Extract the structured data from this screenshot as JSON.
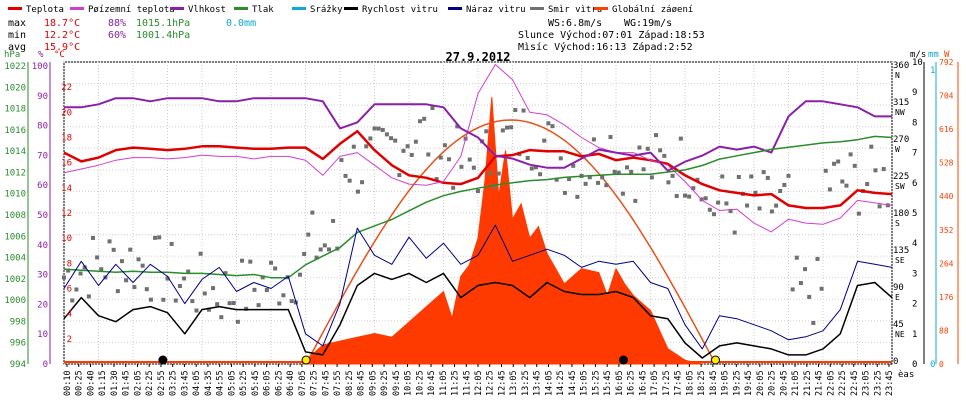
{
  "chart_data": {
    "type": "line",
    "title": "27.9.2012",
    "legend": [
      {
        "label": "Teplota",
        "color": "#e00000"
      },
      {
        "label": "Pøízemní teplota",
        "color": "#d040d0"
      },
      {
        "label": "Vlhkost",
        "color": "#8a1fa8"
      },
      {
        "label": "Tlak",
        "color": "#2a8c2a"
      },
      {
        "label": "Srážky",
        "color": "#10a8d0"
      },
      {
        "label": "Rychlost vìtru",
        "color": "#000000"
      },
      {
        "label": "Náraz vìtru",
        "color": "#00008b"
      },
      {
        "label": "Smìr vìtru",
        "color": "#707070"
      },
      {
        "label": "Globální záøení",
        "color": "#ff4000"
      }
    ],
    "stats": {
      "max": {
        "label": "max",
        "temp": "18.7°C",
        "humidity": "88%",
        "pressure": "1015.1hPa",
        "rain": "0.0mm"
      },
      "min": {
        "label": "min",
        "temp": "12.2°C",
        "humidity": "60%",
        "pressure": "1001.4hPa"
      },
      "avg": {
        "label": "avg",
        "temp": "15.9°C"
      }
    },
    "astro": {
      "ws": "WS:6.8m/s",
      "wg": "WG:19m/s",
      "sun": "Slunce Východ:07:01  Západ:18:53",
      "moon": "Mìsíc  Východ:16:13  Západ:2:52"
    },
    "axes": {
      "hpa": {
        "label": "hPa",
        "color": "#2a8c2a",
        "ticks": [
          "1022",
          "1020",
          "1018",
          "1016",
          "1014",
          "1012",
          "1010",
          "1008",
          "1006",
          "1004",
          "1002",
          "1000",
          "998",
          "996",
          "994"
        ]
      },
      "percent": {
        "label": "%",
        "color": "#8a1fa8",
        "ticks": [
          "100",
          "90",
          "80",
          "70",
          "60",
          "50",
          "40",
          "30",
          "20",
          "10",
          "0"
        ]
      },
      "celsius": {
        "label": "°C",
        "color": "#e00000",
        "ticks": [
          "22",
          "20",
          "18",
          "16",
          "14",
          "12",
          "10",
          "8",
          "6",
          "4",
          "2"
        ]
      },
      "dir": {
        "ticks": [
          {
            "v": "360",
            "d": "N"
          },
          {
            "v": "315",
            "d": "NW"
          },
          {
            "v": "270",
            "d": "W"
          },
          {
            "v": "225",
            "d": "SW"
          },
          {
            "v": "180",
            "d": "S"
          },
          {
            "v": "135",
            "d": "SE"
          },
          {
            "v": "90",
            "d": "E"
          },
          {
            "v": "45",
            "d": "NE"
          },
          {
            "v": "0",
            "d": ""
          }
        ]
      },
      "ms": {
        "label": "m/s",
        "ticks": [
          "10",
          "9",
          "8",
          "7",
          "6",
          "5",
          "4",
          "3",
          "2",
          "1",
          "0"
        ]
      },
      "mm": {
        "label": "mm",
        "color": "#10a8d0",
        "ticks": [
          "1",
          "0"
        ]
      },
      "w": {
        "label": "W",
        "color": "#ff4000",
        "ticks": [
          "792",
          "704",
          "616",
          "528",
          "440",
          "352",
          "264",
          "176",
          "88",
          "0"
        ]
      },
      "x_label": "èas",
      "x_ticks": [
        "00:10",
        "00:25",
        "00:40",
        "01:15",
        "01:30",
        "01:45",
        "02:05",
        "02:25",
        "02:55",
        "03:25",
        "03:45",
        "04:05",
        "04:35",
        "04:55",
        "05:05",
        "05:25",
        "05:45",
        "06:05",
        "06:25",
        "06:40",
        "07:05",
        "07:25",
        "07:45",
        "07:55",
        "08:25",
        "08:45",
        "09:05",
        "09:25",
        "09:45",
        "10:05",
        "10:25",
        "10:45",
        "11:05",
        "11:25",
        "11:45",
        "12:05",
        "12:25",
        "12:45",
        "13:05",
        "13:25",
        "13:45",
        "14:05",
        "14:25",
        "14:45",
        "15:05",
        "15:25",
        "15:45",
        "16:05",
        "16:25",
        "16:45",
        "17:05",
        "17:25",
        "17:45",
        "18:05",
        "18:25",
        "18:45",
        "19:05",
        "19:25",
        "19:45",
        "20:05",
        "20:25",
        "20:45",
        "21:05",
        "21:25",
        "21:45",
        "22:05",
        "22:25",
        "22:45",
        "23:05",
        "23:25",
        "23:45"
      ]
    },
    "ylim_celsius": [
      0,
      24
    ],
    "ylim_percent": [
      0,
      100
    ],
    "ylim_hpa": [
      994,
      1022
    ],
    "ylim_ms": [
      0,
      10
    ],
    "ylim_w": [
      0,
      792
    ],
    "xlim_hours": [
      0,
      24
    ],
    "series": [
      {
        "name": "Teplota",
        "axis": "celsius",
        "x": [
          0,
          0.5,
          1,
          1.5,
          2,
          2.5,
          3,
          3.5,
          4,
          4.5,
          5,
          5.5,
          6,
          6.5,
          7,
          7.5,
          8,
          8.5,
          9,
          9.5,
          10,
          10.5,
          11,
          11.5,
          12,
          12.5,
          13,
          13.5,
          14,
          14.5,
          15,
          15.5,
          16,
          16.5,
          17,
          17.5,
          18,
          18.5,
          19,
          19.5,
          20,
          20.5,
          21,
          21.5,
          22,
          22.5,
          23,
          23.5,
          24
        ],
        "y": [
          16.8,
          16.1,
          16.4,
          17.0,
          17.2,
          17.1,
          17.0,
          17.1,
          17.3,
          17.3,
          17.2,
          17.1,
          17.1,
          17.2,
          17.2,
          16.3,
          17.5,
          18.5,
          17.0,
          15.8,
          15.0,
          14.8,
          14.4,
          14.3,
          14.8,
          16.5,
          16.6,
          17.0,
          16.9,
          16.9,
          16.5,
          16.7,
          16.2,
          16.4,
          16.2,
          15.9,
          15.0,
          14.3,
          13.8,
          13.6,
          13.4,
          13.5,
          12.6,
          12.4,
          12.4,
          12.6,
          13.8,
          13.6,
          13.5
        ]
      },
      {
        "name": "Pøízemní teplota",
        "axis": "celsius",
        "x": [
          0,
          0.5,
          1,
          1.5,
          2,
          2.5,
          3,
          3.5,
          4,
          4.5,
          5,
          5.5,
          6,
          6.5,
          7,
          7.5,
          8,
          8.5,
          9,
          9.5,
          10,
          10.5,
          11,
          11.5,
          12,
          12.5,
          13,
          13.5,
          14,
          14.5,
          15,
          15.5,
          16,
          16.5,
          17,
          17.5,
          18,
          18.5,
          19,
          19.5,
          20,
          20.5,
          21,
          21.5,
          22,
          22.5,
          23,
          23.5,
          24
        ],
        "y": [
          15.2,
          15.5,
          15.8,
          16.2,
          16.4,
          16.4,
          16.3,
          16.4,
          16.6,
          16.5,
          16.5,
          16.3,
          16.5,
          16.5,
          16.2,
          15.0,
          16.5,
          16.8,
          15.8,
          14.8,
          14.3,
          14.2,
          14.5,
          16.5,
          21.5,
          23.8,
          22.6,
          20.0,
          19.8,
          19.0,
          18.0,
          17.2,
          16.8,
          16.8,
          16.2,
          15.8,
          14.5,
          13.0,
          12.2,
          12.3,
          11.2,
          10.5,
          11.5,
          11.2,
          11.1,
          11.6,
          13.0,
          12.8,
          12.6
        ]
      },
      {
        "name": "Vlhkost",
        "axis": "percent",
        "x": [
          0,
          0.5,
          1,
          1.5,
          2,
          2.5,
          3,
          3.5,
          4,
          4.5,
          5,
          5.5,
          6,
          6.5,
          7,
          7.5,
          8,
          8.5,
          9,
          9.5,
          10,
          10.5,
          11,
          11.5,
          12,
          12.5,
          13,
          13.5,
          14,
          14.5,
          15,
          15.5,
          16,
          16.5,
          17,
          17.5,
          18,
          18.5,
          19,
          19.5,
          20,
          20.5,
          21,
          21.5,
          22,
          22.5,
          23,
          23.5,
          24
        ],
        "y": [
          85,
          85,
          86,
          88,
          88,
          87,
          88,
          88,
          88,
          87,
          87,
          88,
          88,
          88,
          88,
          87,
          78,
          80,
          86,
          86,
          86,
          86,
          85,
          78,
          75,
          69,
          68,
          66,
          65,
          65,
          68,
          71,
          70,
          69,
          70,
          64,
          67,
          69,
          72,
          71,
          72,
          70,
          82,
          87,
          87,
          86,
          85,
          82,
          82
        ]
      },
      {
        "name": "Tlak",
        "axis": "hpa",
        "x": [
          0,
          0.5,
          1,
          1.5,
          2,
          2.5,
          3,
          3.5,
          4,
          4.5,
          5,
          5.5,
          6,
          6.5,
          7,
          7.5,
          8,
          8.5,
          9,
          9.5,
          10,
          10.5,
          11,
          11.5,
          12,
          12.5,
          13,
          13.5,
          14,
          14.5,
          15,
          15.5,
          16,
          16.5,
          17,
          17.5,
          18,
          18.5,
          19,
          19.5,
          20,
          20.5,
          21,
          21.5,
          22,
          22.5,
          23,
          23.5,
          24
        ],
        "y": [
          1002.8,
          1002.7,
          1002.6,
          1002.5,
          1002.6,
          1002.5,
          1002.5,
          1002.4,
          1002.4,
          1002.3,
          1002.2,
          1002.3,
          1002.0,
          1002.0,
          1003.2,
          1004.0,
          1004.8,
          1006.2,
          1006.8,
          1007.4,
          1008.2,
          1009.0,
          1009.6,
          1010.0,
          1010.3,
          1010.6,
          1010.8,
          1011.0,
          1011.1,
          1011.3,
          1011.4,
          1011.5,
          1011.6,
          1011.6,
          1011.6,
          1011.8,
          1012.0,
          1012.4,
          1013.0,
          1013.3,
          1013.6,
          1013.9,
          1014.1,
          1014.3,
          1014.5,
          1014.6,
          1014.8,
          1015.1,
          1015.0
        ]
      },
      {
        "name": "Rychlost vìtru",
        "axis": "ms",
        "x": [
          0,
          0.5,
          1,
          1.5,
          2,
          2.5,
          3,
          3.5,
          4,
          4.5,
          5,
          5.5,
          6,
          6.5,
          7,
          7.5,
          8,
          8.5,
          9,
          9.5,
          10,
          10.5,
          11,
          11.5,
          12,
          12.5,
          13,
          13.5,
          14,
          14.5,
          15,
          15.5,
          16,
          16.5,
          17,
          17.5,
          18,
          18.5,
          19,
          19.5,
          20,
          20.5,
          21,
          21.5,
          22,
          22.5,
          23,
          23.5,
          24
        ],
        "y": [
          1.5,
          2.2,
          1.6,
          1.4,
          1.8,
          1.9,
          1.7,
          1.0,
          1.8,
          1.9,
          1.8,
          1.8,
          1.8,
          1.8,
          0.4,
          0.3,
          1.3,
          2.6,
          3.0,
          2.8,
          3.0,
          2.7,
          3.0,
          2.2,
          2.6,
          2.7,
          2.6,
          2.2,
          2.7,
          2.4,
          2.3,
          2.3,
          2.4,
          2.2,
          1.6,
          1.5,
          0.7,
          0.2,
          0.6,
          0.7,
          0.6,
          0.5,
          0.3,
          0.3,
          0.5,
          1.0,
          2.6,
          2.7,
          2.2
        ]
      },
      {
        "name": "Náraz vìtru",
        "axis": "ms",
        "x": [
          0,
          0.5,
          1,
          1.5,
          2,
          2.5,
          3,
          3.5,
          4,
          4.5,
          5,
          5.5,
          6,
          6.5,
          7,
          7.5,
          8,
          8.5,
          9,
          9.5,
          10,
          10.5,
          11,
          11.5,
          12,
          12.5,
          13,
          13.5,
          14,
          14.5,
          15,
          15.5,
          16,
          16.5,
          17,
          17.5,
          18,
          18.5,
          19,
          19.5,
          20,
          20.5,
          21,
          21.5,
          22,
          22.5,
          23,
          23.5,
          24
        ],
        "y": [
          2.5,
          3.4,
          2.6,
          3.3,
          2.7,
          3.3,
          2.9,
          2.0,
          2.8,
          3.2,
          2.4,
          2.7,
          2.5,
          2.9,
          1.0,
          0.6,
          2.0,
          4.5,
          3.6,
          3.3,
          4.2,
          3.5,
          4.0,
          3.3,
          3.6,
          4.6,
          3.4,
          3.6,
          3.8,
          3.6,
          3.2,
          3.4,
          3.3,
          3.4,
          2.7,
          2.5,
          1.3,
          0.5,
          1.6,
          1.5,
          1.3,
          1.1,
          0.8,
          0.9,
          1.1,
          1.8,
          3.4,
          3.3,
          3.2
        ]
      },
      {
        "name": "Globální záøení",
        "axis": "w",
        "type": "area",
        "x": [
          6.9,
          7.5,
          8,
          8.5,
          9,
          9.5,
          10,
          10.5,
          11,
          11.25,
          11.5,
          11.75,
          12,
          12.2,
          12.4,
          12.6,
          12.8,
          13,
          13.25,
          13.5,
          13.75,
          14,
          14.5,
          15,
          15.5,
          15.75,
          16,
          16.25,
          16.5,
          17,
          17.5,
          18,
          18.5
        ],
        "y": [
          0,
          50,
          60,
          70,
          80,
          70,
          110,
          150,
          190,
          120,
          230,
          260,
          330,
          480,
          700,
          440,
          560,
          380,
          420,
          330,
          360,
          290,
          210,
          250,
          240,
          180,
          250,
          210,
          180,
          140,
          40,
          10,
          0
        ]
      }
    ]
  }
}
